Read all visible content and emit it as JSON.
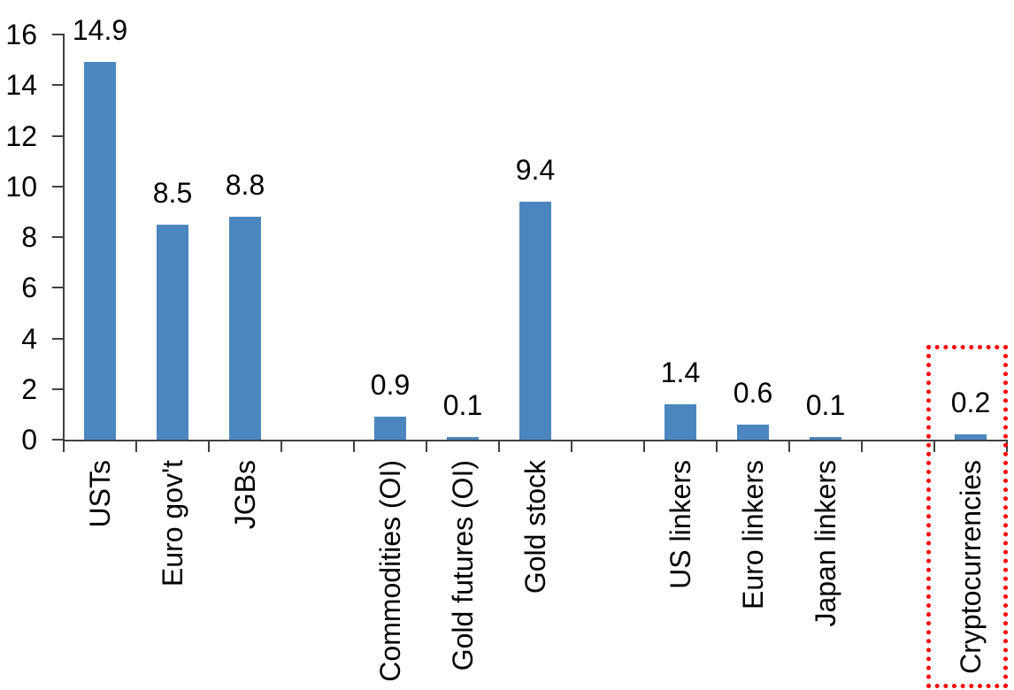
{
  "chart_data": {
    "type": "bar",
    "title": "",
    "xlabel": "",
    "ylabel": "",
    "ylim": [
      0,
      16
    ],
    "ytick_step": 2,
    "grid": false,
    "legend_position": "none",
    "bar_color": "#4c86c0",
    "axis_color": "#404040",
    "text_color": "#000000",
    "highlight_color": "#ff0000",
    "value_labels_shown": true,
    "categories": [
      "USTs",
      "Euro gov't",
      "JGBs",
      "Commodities (OI)",
      "Gold futures (OI)",
      "Gold stock",
      "US linkers",
      "Euro linkers",
      "Japan linkers",
      "Cryptocurrencies"
    ],
    "values": [
      14.9,
      8.5,
      8.8,
      0.9,
      0.1,
      9.4,
      1.4,
      0.6,
      0.1,
      0.2
    ],
    "value_label_texts": [
      "14.9",
      "8.5",
      "8.8",
      "0.9",
      "0.1",
      "9.4",
      "1.4",
      "0.6",
      "0.1",
      "0.2"
    ],
    "ytick_labels": [
      "0",
      "2",
      "4",
      "6",
      "8",
      "10",
      "12",
      "14",
      "16"
    ],
    "groups": [
      [
        0,
        1,
        2
      ],
      [
        3,
        4,
        5
      ],
      [
        6,
        7,
        8
      ],
      [
        9
      ]
    ],
    "annotation": {
      "type": "highlight_box",
      "target": "Cryptocurrencies",
      "border_style": "dotted",
      "border_color": "#ff0000"
    }
  }
}
